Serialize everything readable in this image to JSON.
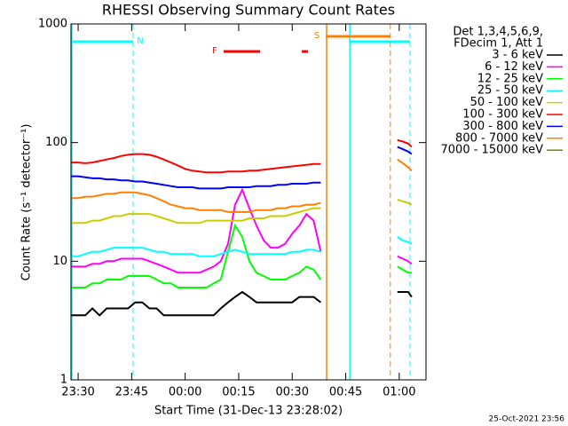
{
  "chart_data": {
    "type": "line",
    "title": "RHESSI Observing Summary Count Rates",
    "xlabel": "Start Time (31-Dec-13 23:28:02)",
    "ylabel": "Count Rate (s⁻¹ detector⁻¹)",
    "legend_header": [
      "Det 1,3,4,5,6,9,",
      "FDecim 1, Att 1"
    ],
    "footer": "25-Oct-2021 23:56",
    "log_y": true,
    "ylim": [
      1,
      1000
    ],
    "yticks": [
      1,
      10,
      100,
      1000
    ],
    "xlim": [
      -32,
      67.5
    ],
    "xticks": [
      {
        "value": -30,
        "label": "23:30"
      },
      {
        "value": -15,
        "label": "23:45"
      },
      {
        "value": 0,
        "label": "00:00"
      },
      {
        "value": 15,
        "label": "00:15"
      },
      {
        "value": 30,
        "label": "00:30"
      },
      {
        "value": 45,
        "label": "00:45"
      },
      {
        "value": 60,
        "label": "01:00"
      }
    ],
    "x": [
      -32,
      -30,
      -28,
      -26,
      -24,
      -22,
      -20,
      -18,
      -16,
      -14,
      -12,
      -10,
      -8,
      -6,
      -4,
      -2,
      0,
      2,
      4,
      6,
      8,
      10,
      12,
      14,
      16,
      18,
      20,
      22,
      24,
      26,
      28,
      30,
      32,
      34,
      36,
      38,
      50,
      59.5,
      61,
      62.5,
      63.5
    ],
    "flags": [
      {
        "label": "N",
        "color": "#00ffff",
        "vlines": true,
        "spans": [
          [
            -32,
            -14.6
          ],
          [
            45.9,
            63
          ]
        ]
      },
      {
        "label": "F",
        "color": "#ff0000",
        "vlines": false,
        "spans": [
          [
            10.8,
            21
          ],
          [
            32.7,
            34.4
          ]
        ]
      },
      {
        "label": "S",
        "color": "#ff8000",
        "vlines": true,
        "spans": [
          [
            39.4,
            57.5
          ]
        ]
      }
    ],
    "series": [
      {
        "name": "3 - 6 keV",
        "color": "#000000",
        "values": [
          3.5,
          3.5,
          3.5,
          4,
          3.5,
          4,
          4,
          4,
          4,
          4.5,
          4.5,
          4,
          4,
          3.5,
          3.5,
          3.5,
          3.5,
          3.5,
          3.5,
          3.5,
          3.5,
          4,
          4.5,
          5,
          5.5,
          5,
          4.5,
          4.5,
          4.5,
          4.5,
          4.5,
          4.5,
          5,
          5,
          5,
          4.5,
          null,
          5.5,
          5.5,
          5.5,
          5
        ]
      },
      {
        "name": "6 - 12 keV",
        "color": "#ff00ff",
        "values": [
          9,
          9,
          9,
          9.5,
          9.5,
          10,
          10,
          10.5,
          10.5,
          10.5,
          10.5,
          10,
          9.5,
          9,
          8.5,
          8,
          8,
          8,
          8,
          8.5,
          9,
          10,
          14,
          30,
          40,
          28,
          20,
          15,
          13,
          13,
          14,
          17,
          20,
          25,
          22,
          12,
          null,
          11,
          10.5,
          10,
          9.5
        ]
      },
      {
        "name": "12 - 25 keV",
        "color": "#00ff00",
        "values": [
          6,
          6,
          6,
          6.5,
          6.5,
          7,
          7,
          7,
          7.5,
          7.5,
          7.5,
          7.5,
          7,
          6.5,
          6.5,
          6,
          6,
          6,
          6,
          6,
          6.5,
          7,
          12,
          20,
          16,
          10,
          8,
          7.5,
          7,
          7,
          7,
          7.5,
          8,
          9,
          8.5,
          7,
          null,
          9,
          8.5,
          8,
          8
        ]
      },
      {
        "name": "25 - 50 keV",
        "color": "#00ffff",
        "values": [
          11,
          11,
          11.5,
          12,
          12,
          12.5,
          13,
          13,
          13,
          13,
          13,
          12.5,
          12,
          12,
          11.5,
          11.5,
          11.5,
          11.5,
          11,
          11,
          11,
          11.5,
          12,
          12.5,
          12,
          11.5,
          11.5,
          11.5,
          11.5,
          11.5,
          11.5,
          12,
          12,
          12.5,
          12.5,
          12,
          null,
          16,
          15,
          14.5,
          14
        ]
      },
      {
        "name": "50 - 100 keV",
        "color": "#cccc00",
        "values": [
          21,
          21,
          21,
          22,
          22,
          23,
          24,
          24,
          25,
          25,
          25,
          25,
          24,
          23,
          22,
          21,
          21,
          21,
          21,
          22,
          22,
          22,
          22,
          22,
          22,
          23,
          23,
          23,
          24,
          24,
          24,
          25,
          26,
          27,
          28,
          28,
          null,
          33,
          32,
          31,
          30
        ]
      },
      {
        "name": "100 - 300 keV",
        "color": "#ff0000",
        "values": [
          68,
          68,
          67,
          68,
          70,
          72,
          74,
          77,
          79,
          80,
          80,
          79,
          76,
          72,
          68,
          64,
          60,
          58,
          57,
          56,
          56,
          56,
          57,
          57,
          57,
          58,
          58,
          59,
          60,
          61,
          62,
          63,
          64,
          65,
          66,
          66,
          null,
          105,
          102,
          98,
          92
        ]
      },
      {
        "name": "300 - 800 keV",
        "color": "#0000ff",
        "values": [
          52,
          52,
          51,
          50,
          50,
          49,
          49,
          48,
          48,
          47,
          47,
          46,
          45,
          44,
          43,
          42,
          42,
          42,
          41,
          41,
          41,
          41,
          42,
          42,
          42,
          42,
          43,
          43,
          43,
          44,
          44,
          45,
          45,
          45,
          46,
          46,
          null,
          92,
          88,
          84,
          80
        ]
      },
      {
        "name": "800 - 7000 keV",
        "color": "#ff8000",
        "values": [
          34,
          34,
          35,
          35,
          36,
          37,
          37,
          38,
          38,
          38,
          37,
          36,
          34,
          32,
          30,
          29,
          28,
          28,
          27,
          27,
          27,
          27,
          26,
          26,
          26,
          26,
          27,
          27,
          27,
          28,
          28,
          29,
          29,
          30,
          30,
          31,
          null,
          72,
          67,
          62,
          58
        ]
      },
      {
        "name": "7000 - 15000 keV",
        "color": "#808000",
        "values": [
          null,
          null,
          null,
          null,
          null,
          null,
          null,
          null,
          null,
          null,
          null,
          null,
          null,
          null,
          null,
          null,
          null,
          null,
          null,
          null,
          null,
          null,
          null,
          null,
          null,
          null,
          null,
          null,
          null,
          null,
          null,
          null,
          null,
          null,
          null,
          null,
          null,
          null,
          null,
          null,
          null
        ]
      }
    ]
  }
}
